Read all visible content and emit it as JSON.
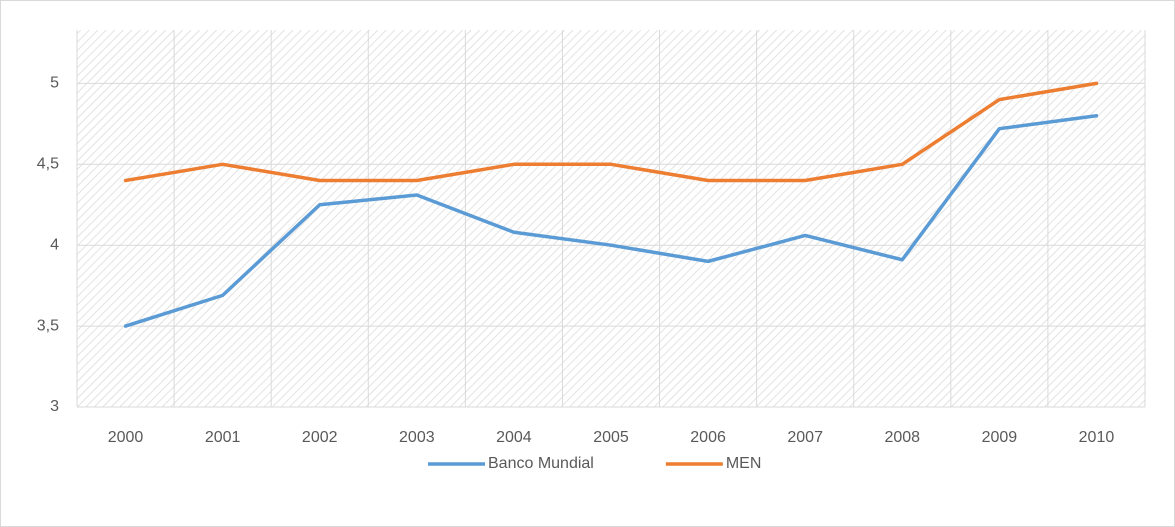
{
  "chart_data": {
    "type": "line",
    "categories": [
      "2000",
      "2001",
      "2002",
      "2003",
      "2004",
      "2005",
      "2006",
      "2007",
      "2008",
      "2009",
      "2010"
    ],
    "series": [
      {
        "name": "Banco Mundial",
        "color": "#5b9bd5",
        "values": [
          3.5,
          3.69,
          4.25,
          4.31,
          4.08,
          4.0,
          3.9,
          4.06,
          3.91,
          4.72,
          4.8
        ]
      },
      {
        "name": "MEN",
        "color": "#ed7d31",
        "values": [
          4.4,
          4.5,
          4.4,
          4.4,
          4.5,
          4.5,
          4.4,
          4.4,
          4.5,
          4.9,
          5.0
        ]
      }
    ],
    "ylim": [
      3,
      5.33
    ],
    "yticks": [
      3,
      {
        "value": 3.5,
        "label": "3,5"
      },
      4,
      {
        "value": 4.5,
        "label": "4,5"
      },
      5
    ],
    "grid": true,
    "legend": "bottom"
  }
}
